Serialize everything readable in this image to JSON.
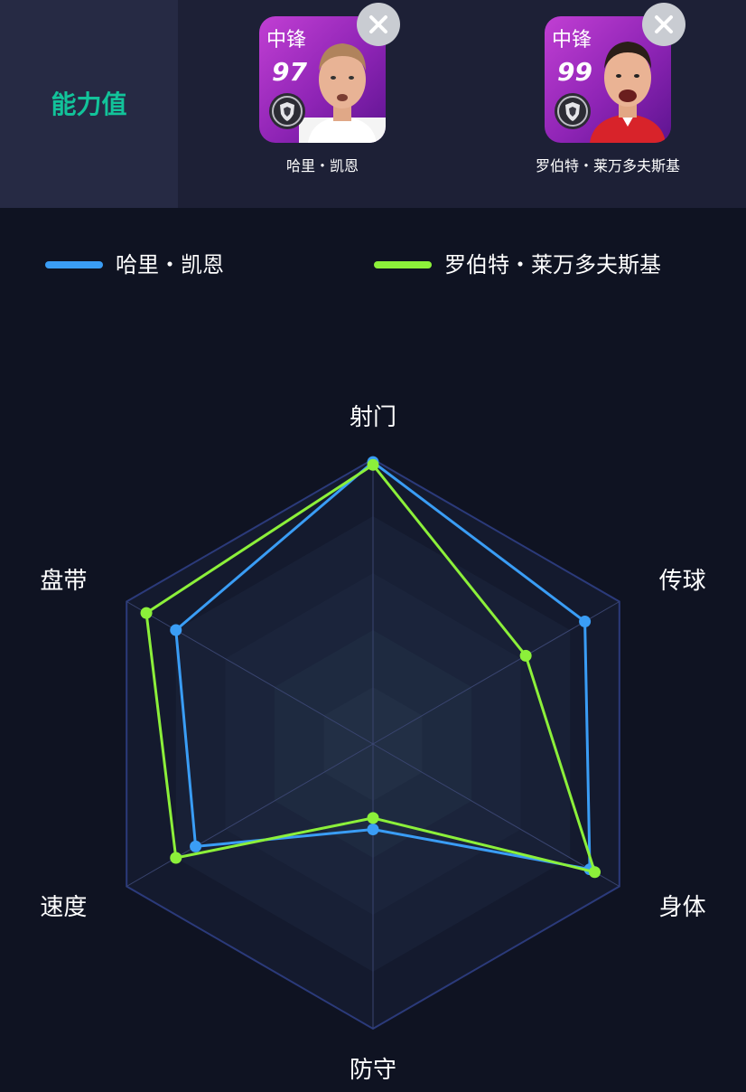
{
  "header": {
    "tab_label": "能力值"
  },
  "players": [
    {
      "position": "中锋",
      "rating": "97",
      "name": "哈里・凯恩",
      "legend_name": "哈里・凯恩",
      "color": "#3a9df5",
      "remove_icon": "close-icon"
    },
    {
      "position": "中锋",
      "rating": "99",
      "name": "罗伯特・莱万多夫斯基",
      "legend_name": "罗伯特・莱万多夫斯基",
      "color": "#8cf03a",
      "remove_icon": "close-icon"
    }
  ],
  "chart_data": {
    "type": "radar",
    "axes": [
      "射门",
      "传球",
      "身体",
      "防守",
      "速度",
      "盘带"
    ],
    "max": 100,
    "series": [
      {
        "name": "哈里・凯恩",
        "values": [
          99,
          86,
          88,
          30,
          72,
          80
        ]
      },
      {
        "name": "罗伯特・莱万多夫斯基",
        "values": [
          98,
          62,
          90,
          26,
          80,
          92
        ]
      }
    ]
  }
}
